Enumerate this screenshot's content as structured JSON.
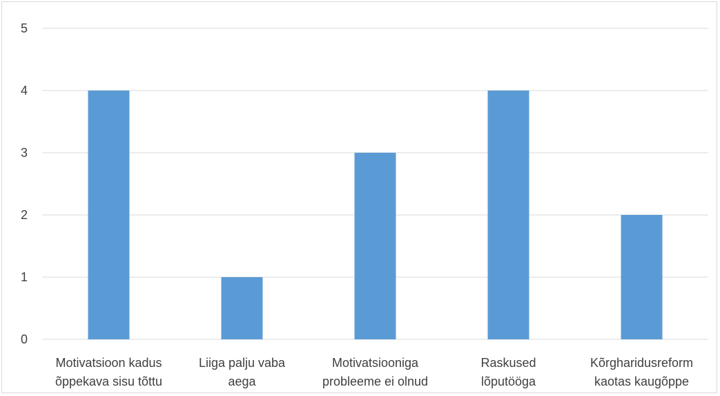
{
  "chart_data": {
    "type": "bar",
    "title": "",
    "xlabel": "",
    "ylabel": "",
    "categories": [
      [
        "Motivatsioon kadus",
        "õppekava sisu tõttu"
      ],
      [
        "Liiga palju vaba",
        "aega"
      ],
      [
        "Motivatsiooniga",
        "probleeme ei olnud"
      ],
      [
        "Raskused",
        "lõputööga"
      ],
      [
        "Kõrgharidusreform",
        "kaotas kaugõppe"
      ]
    ],
    "values": [
      4,
      1,
      3,
      4,
      2
    ],
    "ylim": [
      0,
      5
    ],
    "yticks": [
      "0",
      "1",
      "2",
      "3",
      "4",
      "5"
    ],
    "grid": true,
    "legend": "none",
    "bar_color": "#5b9bd5",
    "grid_color": "#d9d9d9"
  }
}
